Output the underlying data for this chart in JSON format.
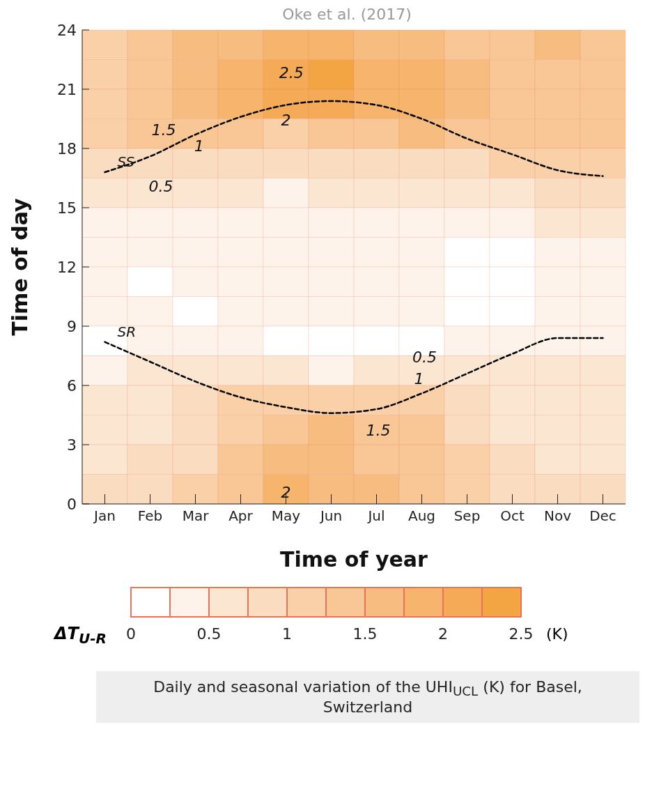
{
  "chart_data": {
    "type": "heatmap",
    "xlabel": "Time of year",
    "ylabel": "Time of day",
    "clabel": "ΔT$_{U-R}$",
    "categories": [
      "Jan",
      "Feb",
      "Mar",
      "Apr",
      "May",
      "Jun",
      "Jul",
      "Aug",
      "Sep",
      "Oct",
      "Nov",
      "Dec"
    ],
    "ylim": [
      0,
      24
    ],
    "yticks": [
      0,
      3,
      6,
      9,
      12,
      15,
      18,
      21,
      24
    ],
    "clim": [
      0,
      2.5
    ],
    "cticks": [
      0,
      0.5,
      1,
      1.5,
      2,
      2.5
    ],
    "colors": [
      "#ffffff",
      "#fdf3ea",
      "#fbe6d2",
      "#fadcc0",
      "#f9d0a8",
      "#f8c795",
      "#f7bd80",
      "#f6b46c",
      "#f5aa58",
      "#f3a443"
    ],
    "cells": [
      [
        1.1,
        1.4,
        1.6,
        1.6,
        1.9,
        1.9,
        1.6,
        1.6,
        1.4,
        1.4,
        1.6,
        1.4
      ],
      [
        1.1,
        1.4,
        1.6,
        1.9,
        2.1,
        2.4,
        1.9,
        1.9,
        1.6,
        1.4,
        1.4,
        1.4
      ],
      [
        1.1,
        1.4,
        1.6,
        1.9,
        2.1,
        2.1,
        1.9,
        1.9,
        1.6,
        1.4,
        1.4,
        1.4
      ],
      [
        1.1,
        1.4,
        1.4,
        1.4,
        1.1,
        1.4,
        1.4,
        1.6,
        1.4,
        1.4,
        1.4,
        1.4
      ],
      [
        0.9,
        0.9,
        0.9,
        0.9,
        0.9,
        0.9,
        0.9,
        0.9,
        0.9,
        1.1,
        1.1,
        1.1
      ],
      [
        0.6,
        0.6,
        0.6,
        0.6,
        0.4,
        0.6,
        0.6,
        0.6,
        0.6,
        0.6,
        0.9,
        0.9
      ],
      [
        0.4,
        0.4,
        0.4,
        0.4,
        0.4,
        0.4,
        0.4,
        0.4,
        0.4,
        0.4,
        0.6,
        0.6
      ],
      [
        0.4,
        0.4,
        0.4,
        0.4,
        0.4,
        0.4,
        0.4,
        0.4,
        0.1,
        0.1,
        0.4,
        0.4
      ],
      [
        0.4,
        0.1,
        0.4,
        0.4,
        0.4,
        0.4,
        0.4,
        0.4,
        0.1,
        0.1,
        0.4,
        0.4
      ],
      [
        0.4,
        0.4,
        0.1,
        0.4,
        0.4,
        0.4,
        0.4,
        0.4,
        0.1,
        0.1,
        0.4,
        0.4
      ],
      [
        0.1,
        0.4,
        0.4,
        0.4,
        0.1,
        0.1,
        0.1,
        0.1,
        0.4,
        0.4,
        0.4,
        0.4
      ],
      [
        0.4,
        0.6,
        0.6,
        0.6,
        0.6,
        0.4,
        0.6,
        0.6,
        0.6,
        0.6,
        0.6,
        0.6
      ],
      [
        0.6,
        0.6,
        0.9,
        1.1,
        1.1,
        1.1,
        1.1,
        1.1,
        0.9,
        0.6,
        0.6,
        0.6
      ],
      [
        0.6,
        0.6,
        0.9,
        1.1,
        1.4,
        1.6,
        1.4,
        1.4,
        0.9,
        0.6,
        0.6,
        0.6
      ],
      [
        0.6,
        0.9,
        0.9,
        1.4,
        1.6,
        1.6,
        1.4,
        1.4,
        1.1,
        0.9,
        0.6,
        0.6
      ],
      [
        0.9,
        0.9,
        1.1,
        1.4,
        1.9,
        1.6,
        1.6,
        1.4,
        1.1,
        0.9,
        0.9,
        0.9
      ]
    ],
    "series": [
      {
        "name": "SS",
        "type": "line",
        "color": "#000000",
        "line_style": "dashed",
        "marker": "none",
        "values": [
          16.8,
          17.6,
          18.7,
          19.6,
          20.2,
          20.4,
          20.2,
          19.5,
          18.5,
          17.7,
          16.9,
          16.6
        ]
      },
      {
        "name": "SR",
        "type": "line",
        "color": "#000000",
        "line_style": "dashed",
        "marker": "none",
        "values": [
          8.2,
          7.2,
          6.2,
          5.4,
          4.9,
          4.6,
          4.8,
          5.6,
          6.6,
          7.6,
          8.4,
          8.4
        ]
      }
    ],
    "annotations": [
      "Oke et al. (2017)",
      "(K)",
      "Daily and seasonal variation of the UHI$_{UCL}$ (K) for Basel, Switzerland",
      "2.5",
      "2",
      "1.5",
      "1",
      "0.5",
      "0.5",
      "1",
      "1.5",
      "2"
    ],
    "grid": false,
    "legend": false
  }
}
